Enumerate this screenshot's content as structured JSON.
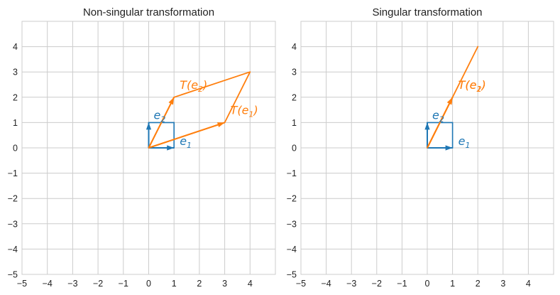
{
  "chart_data": [
    {
      "type": "line",
      "title": "Non-singular transformation",
      "xlim": [
        -5,
        5
      ],
      "ylim": [
        -5,
        5
      ],
      "xticks": [
        "−5",
        "−4",
        "−3",
        "−2",
        "−1",
        "0",
        "1",
        "2",
        "3",
        "4"
      ],
      "yticks": [
        "−5",
        "−4",
        "−3",
        "−2",
        "−1",
        "0",
        "1",
        "2",
        "3",
        "4"
      ],
      "grid": true,
      "colors": {
        "basis": "#1f77b4",
        "transformed": "#ff7f0e"
      },
      "basis_vectors": [
        {
          "label": "e",
          "sub": "1",
          "x": 1,
          "y": 0
        },
        {
          "label": "e",
          "sub": "2",
          "x": 0,
          "y": 1
        }
      ],
      "transformed_vectors": [
        {
          "label": "T(e",
          "sub": "1",
          "tail": ")",
          "x": 3,
          "y": 1
        },
        {
          "label": "T(e",
          "sub": "2",
          "tail": ")",
          "x": 1,
          "y": 2
        }
      ],
      "unit_square": [
        [
          0,
          0
        ],
        [
          1,
          0
        ],
        [
          1,
          1
        ],
        [
          0,
          1
        ]
      ],
      "transformed_shape": [
        [
          0,
          0
        ],
        [
          3,
          1
        ],
        [
          4,
          3
        ],
        [
          1,
          2
        ]
      ]
    },
    {
      "type": "line",
      "title": "Singular transformation",
      "xlim": [
        -5,
        5
      ],
      "ylim": [
        -5,
        5
      ],
      "xticks": [
        "−5",
        "−4",
        "−3",
        "−2",
        "−1",
        "0",
        "1",
        "2",
        "3",
        "4"
      ],
      "yticks": [
        "−5",
        "−4",
        "−3",
        "−2",
        "−1",
        "0",
        "1",
        "2",
        "3",
        "4"
      ],
      "grid": true,
      "colors": {
        "basis": "#1f77b4",
        "transformed": "#ff7f0e"
      },
      "basis_vectors": [
        {
          "label": "e",
          "sub": "1",
          "x": 1,
          "y": 0
        },
        {
          "label": "e",
          "sub": "2",
          "x": 0,
          "y": 1
        }
      ],
      "transformed_vectors": [
        {
          "label": "T(e",
          "sub": "1",
          "tail": ")",
          "x": 1,
          "y": 2
        },
        {
          "label": "T(e",
          "sub": "2",
          "tail": ")",
          "x": 1,
          "y": 2
        }
      ],
      "unit_square": [
        [
          0,
          0
        ],
        [
          1,
          0
        ],
        [
          1,
          1
        ],
        [
          0,
          1
        ]
      ],
      "transformed_shape": [
        [
          0,
          0
        ],
        [
          1,
          2
        ],
        [
          2,
          4
        ],
        [
          1,
          2
        ]
      ]
    }
  ]
}
